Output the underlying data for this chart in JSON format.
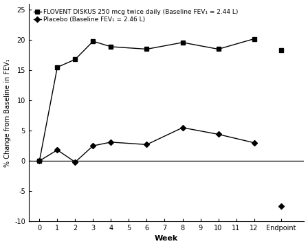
{
  "flovent_x": [
    0,
    1,
    2,
    3,
    4,
    6,
    8,
    10,
    12
  ],
  "flovent_y": [
    0,
    15.5,
    16.8,
    19.8,
    18.9,
    18.5,
    19.6,
    18.5,
    20.2
  ],
  "flovent_endpoint_y": 18.3,
  "placebo_x": [
    0,
    1,
    2,
    3,
    4,
    6,
    8,
    10,
    12
  ],
  "placebo_y": [
    0,
    1.8,
    -0.2,
    2.5,
    3.1,
    2.7,
    5.5,
    4.4,
    3.0
  ],
  "placebo_endpoint_y": -7.5,
  "flovent_label": "FLOVENT DISKUS 250 mcg twice daily (Baseline FEV₁ = 2.44 L)",
  "placebo_label": "Placebo (Baseline FEV₁ = 2.46 L)",
  "xlabel": "Week",
  "ylabel": "% Change from Baseline in FEV₁",
  "ylim": [
    -10,
    26
  ],
  "yticks": [
    -10,
    -5,
    0,
    5,
    10,
    15,
    20,
    25
  ],
  "xticks": [
    0,
    1,
    2,
    3,
    4,
    5,
    6,
    7,
    8,
    9,
    10,
    11,
    12
  ],
  "color": "#000000",
  "background": "#ffffff",
  "endpoint_x_pos": 13.5,
  "xlim_left": -0.6,
  "xlim_right": 14.8
}
